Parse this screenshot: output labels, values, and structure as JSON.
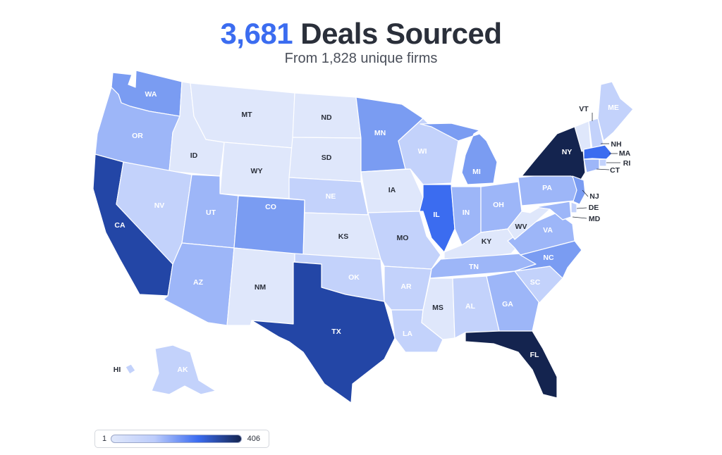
{
  "header": {
    "count": "3,681",
    "title_rest": "Deals Sourced",
    "subtitle": "From 1,828 unique firms"
  },
  "legend": {
    "min": "1",
    "max": "406",
    "gradient": [
      "#e0e8fb",
      "#bcccfb",
      "#3b6cf0",
      "#14244f"
    ]
  },
  "colors": {
    "lightest": "#dfe7fb",
    "light": "#c3d2fb",
    "mid": "#9db6f8",
    "medium": "#7a9cf2",
    "strong": "#3b6cf0",
    "dark": "#2346a6",
    "darkest": "#14244f",
    "label_dark": "#2a2f3a",
    "label_light": "#ffffff"
  },
  "states": [
    {
      "code": "WA",
      "label": "WA",
      "shade": "medium"
    },
    {
      "code": "OR",
      "label": "OR",
      "shade": "mid"
    },
    {
      "code": "CA",
      "label": "CA",
      "shade": "dark"
    },
    {
      "code": "ID",
      "label": "ID",
      "shade": "lightest"
    },
    {
      "code": "NV",
      "label": "NV",
      "shade": "light"
    },
    {
      "code": "MT",
      "label": "MT",
      "shade": "lightest"
    },
    {
      "code": "WY",
      "label": "WY",
      "shade": "lightest"
    },
    {
      "code": "UT",
      "label": "UT",
      "shade": "mid"
    },
    {
      "code": "AZ",
      "label": "AZ",
      "shade": "mid"
    },
    {
      "code": "CO",
      "label": "CO",
      "shade": "medium"
    },
    {
      "code": "NM",
      "label": "NM",
      "shade": "lightest"
    },
    {
      "code": "ND",
      "label": "ND",
      "shade": "lightest"
    },
    {
      "code": "SD",
      "label": "SD",
      "shade": "lightest"
    },
    {
      "code": "NE",
      "label": "NE",
      "shade": "light"
    },
    {
      "code": "KS",
      "label": "KS",
      "shade": "lightest"
    },
    {
      "code": "OK",
      "label": "OK",
      "shade": "light"
    },
    {
      "code": "TX",
      "label": "TX",
      "shade": "dark"
    },
    {
      "code": "MN",
      "label": "MN",
      "shade": "medium"
    },
    {
      "code": "IA",
      "label": "IA",
      "shade": "lightest"
    },
    {
      "code": "MO",
      "label": "MO",
      "shade": "light"
    },
    {
      "code": "AR",
      "label": "AR",
      "shade": "light"
    },
    {
      "code": "LA",
      "label": "LA",
      "shade": "light"
    },
    {
      "code": "WI",
      "label": "WI",
      "shade": "light"
    },
    {
      "code": "IL",
      "label": "IL",
      "shade": "strong"
    },
    {
      "code": "MI",
      "label": "MI",
      "shade": "medium"
    },
    {
      "code": "IN",
      "label": "IN",
      "shade": "mid"
    },
    {
      "code": "OH",
      "label": "OH",
      "shade": "mid"
    },
    {
      "code": "KY",
      "label": "KY",
      "shade": "lightest"
    },
    {
      "code": "TN",
      "label": "TN",
      "shade": "mid"
    },
    {
      "code": "MS",
      "label": "MS",
      "shade": "lightest"
    },
    {
      "code": "AL",
      "label": "AL",
      "shade": "light"
    },
    {
      "code": "GA",
      "label": "GA",
      "shade": "mid"
    },
    {
      "code": "FL",
      "label": "FL",
      "shade": "darkest"
    },
    {
      "code": "SC",
      "label": "SC",
      "shade": "light"
    },
    {
      "code": "NC",
      "label": "NC",
      "shade": "medium"
    },
    {
      "code": "VA",
      "label": "VA",
      "shade": "mid"
    },
    {
      "code": "WV",
      "label": "WV",
      "shade": "lightest"
    },
    {
      "code": "PA",
      "label": "PA",
      "shade": "mid"
    },
    {
      "code": "NY",
      "label": "NY",
      "shade": "darkest"
    },
    {
      "code": "VT",
      "label": "VT",
      "shade": "lightest"
    },
    {
      "code": "NH",
      "label": "NH",
      "shade": "light"
    },
    {
      "code": "ME",
      "label": "ME",
      "shade": "light"
    },
    {
      "code": "MA",
      "label": "MA",
      "shade": "strong"
    },
    {
      "code": "RI",
      "label": "RI",
      "shade": "light"
    },
    {
      "code": "CT",
      "label": "CT",
      "shade": "mid"
    },
    {
      "code": "NJ",
      "label": "NJ",
      "shade": "medium"
    },
    {
      "code": "DE",
      "label": "DE",
      "shade": "light"
    },
    {
      "code": "MD",
      "label": "MD",
      "shade": "mid"
    },
    {
      "code": "AK",
      "label": "AK",
      "shade": "light"
    },
    {
      "code": "HI",
      "label": "HI",
      "shade": "light"
    }
  ]
}
